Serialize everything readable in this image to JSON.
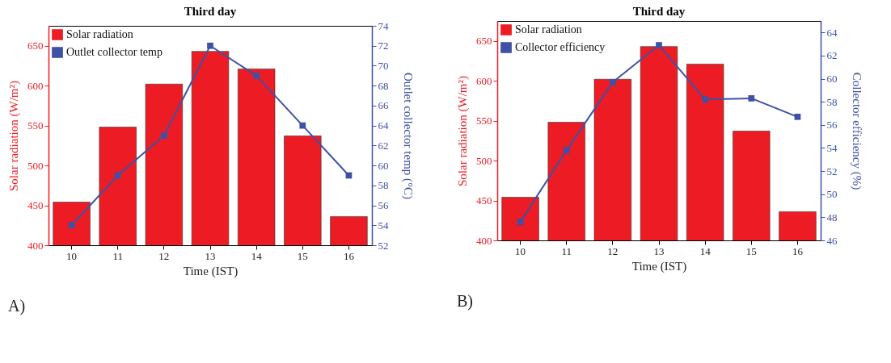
{
  "chart_data": [
    {
      "type": "bar",
      "title": "Third day",
      "xlabel": "Time (IST)",
      "ylabel": "Solar radiation (W/m²)",
      "y2label": "Outlet collector temp (°C)",
      "categories": [
        "10",
        "11",
        "12",
        "13",
        "14",
        "15",
        "16"
      ],
      "series": [
        {
          "name": "Solar radiation",
          "color": "#ed1c24",
          "values": [
            454,
            548,
            602,
            643,
            621,
            537,
            436
          ]
        },
        {
          "name": "Outlet collector temp",
          "type": "line",
          "axis": "y2",
          "color": "#3f51a5",
          "values": [
            54,
            59,
            63,
            72,
            69,
            64,
            59
          ]
        }
      ],
      "ylim": [
        400,
        675
      ],
      "yticks": [
        400,
        450,
        500,
        550,
        600,
        650
      ],
      "y2lim": [
        52,
        74
      ],
      "y2ticks": [
        52,
        54,
        56,
        58,
        60,
        62,
        64,
        66,
        68,
        70,
        72,
        74
      ],
      "legend": "top left",
      "marker": "square",
      "grid": false,
      "annotations": [
        "A)"
      ]
    },
    {
      "type": "bar",
      "title": "Third day",
      "xlabel": "Time (IST)",
      "ylabel": "Solar radiation (W/m²)",
      "y2label": "Collector efficiency (%)",
      "categories": [
        "10",
        "11",
        "12",
        "13",
        "14",
        "15",
        "16"
      ],
      "series": [
        {
          "name": "Solar radiation",
          "color": "#ed1c24",
          "values": [
            454,
            548,
            602,
            643,
            621,
            537,
            436
          ]
        },
        {
          "name": "Collector efficiency",
          "type": "line",
          "axis": "y2",
          "color": "#3f51a5",
          "values": [
            47.6,
            53.8,
            59.7,
            62.9,
            58.2,
            58.3,
            56.7
          ]
        }
      ],
      "ylim": [
        400,
        675
      ],
      "yticks": [
        400,
        450,
        500,
        550,
        600,
        650
      ],
      "y2lim": [
        46,
        65
      ],
      "y2ticks": [
        46,
        48,
        50,
        52,
        54,
        56,
        58,
        60,
        62,
        64
      ],
      "legend": "top left",
      "marker": "square",
      "grid": false,
      "annotations": [
        "B)"
      ]
    }
  ]
}
